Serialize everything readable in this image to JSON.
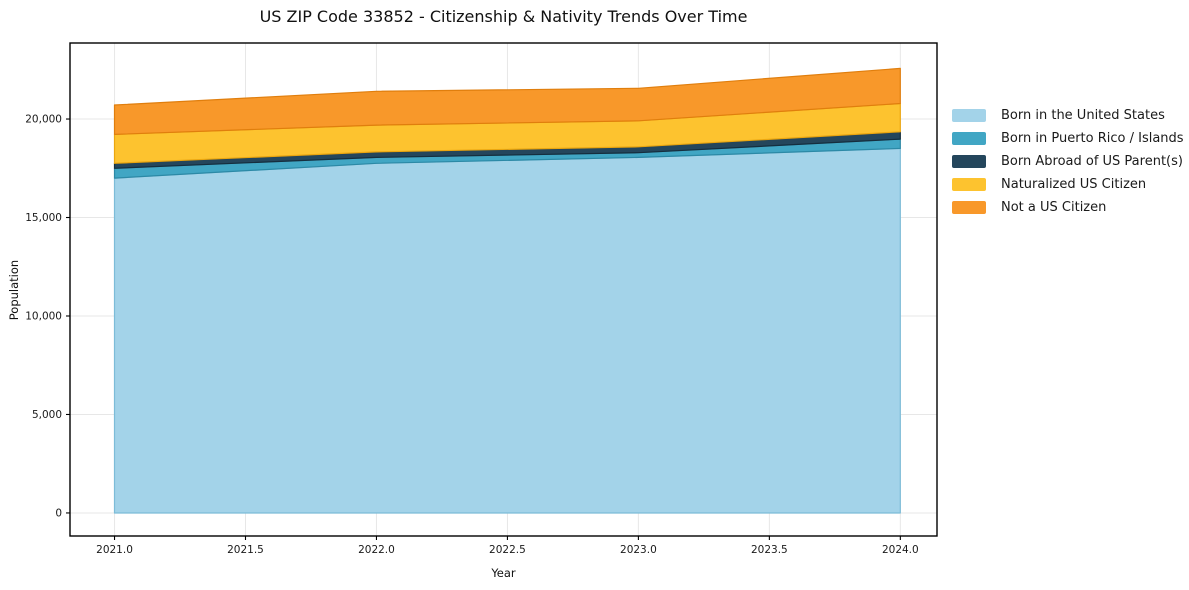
{
  "title": "US ZIP Code 33852 - Citizenship & Nativity Trends Over Time",
  "chart_data": {
    "type": "area",
    "stacked": true,
    "title": "US ZIP Code 33852 - Citizenship & Nativity Trends Over Time",
    "xlabel": "Year",
    "ylabel": "Population",
    "x": [
      2021,
      2022,
      2023,
      2024
    ],
    "series": [
      {
        "name": "Born in the United States",
        "color": "#a3d3e9",
        "edge": "#7cbcd8",
        "values": [
          17000,
          17750,
          18050,
          18510
        ]
      },
      {
        "name": "Born in Puerto Rico / Islands",
        "color": "#41a6c4",
        "edge": "#2c89a6",
        "values": [
          500,
          300,
          240,
          470
        ]
      },
      {
        "name": "Born Abroad of US Parent(s)",
        "color": "#24465c",
        "edge": "#152e3e",
        "values": [
          250,
          280,
          300,
          370
        ]
      },
      {
        "name": "Naturalized US Citizen",
        "color": "#fdc32f",
        "edge": "#eba60f",
        "values": [
          1470,
          1360,
          1320,
          1440
        ]
      },
      {
        "name": "Not a US Citizen",
        "color": "#f8982a",
        "edge": "#e07e0d",
        "values": [
          1490,
          1720,
          1650,
          1780
        ]
      }
    ],
    "xticks": {
      "values": [
        2021,
        2021.5,
        2022,
        2022.5,
        2023,
        2023.5,
        2024
      ],
      "labels": [
        "2021.0",
        "2021.5",
        "2022.0",
        "2022.5",
        "2023.0",
        "2023.5",
        "2024.0"
      ]
    },
    "yticks": {
      "values": [
        0,
        5000,
        10000,
        15000,
        20000
      ],
      "labels": [
        "0",
        "5,000",
        "10,000",
        "15,000",
        "20,000"
      ]
    },
    "xlim": [
      2020.83,
      2024.14
    ],
    "ylim": [
      -1170,
      23860
    ],
    "grid": true,
    "legend_position": "right",
    "colors": {
      "grid": "#e7e7e7",
      "frame": "#000000",
      "tick_text": "#1a1a1a",
      "background": "#ffffff"
    }
  }
}
